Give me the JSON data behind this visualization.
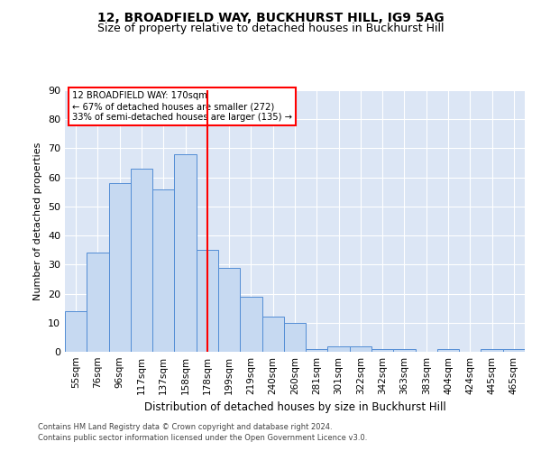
{
  "title": "12, BROADFIELD WAY, BUCKHURST HILL, IG9 5AG",
  "subtitle": "Size of property relative to detached houses in Buckhurst Hill",
  "xlabel": "Distribution of detached houses by size in Buckhurst Hill",
  "ylabel": "Number of detached properties",
  "footnote1": "Contains HM Land Registry data © Crown copyright and database right 2024.",
  "footnote2": "Contains public sector information licensed under the Open Government Licence v3.0.",
  "categories": [
    "55sqm",
    "76sqm",
    "96sqm",
    "117sqm",
    "137sqm",
    "158sqm",
    "178sqm",
    "199sqm",
    "219sqm",
    "240sqm",
    "260sqm",
    "281sqm",
    "301sqm",
    "322sqm",
    "342sqm",
    "363sqm",
    "383sqm",
    "404sqm",
    "424sqm",
    "445sqm",
    "465sqm"
  ],
  "values": [
    14,
    34,
    58,
    63,
    56,
    68,
    35,
    29,
    19,
    12,
    10,
    1,
    2,
    2,
    1,
    1,
    0,
    1,
    0,
    1,
    1
  ],
  "bar_color": "#c6d9f1",
  "bar_edge_color": "#538dd5",
  "vline_x": 6,
  "vline_color": "red",
  "annotation_line1": "12 BROADFIELD WAY: 170sqm",
  "annotation_line2": "← 67% of detached houses are smaller (272)",
  "annotation_line3": "33% of semi-detached houses are larger (135) →",
  "annotation_box_edge": "red",
  "ylim": [
    0,
    90
  ],
  "yticks": [
    0,
    10,
    20,
    30,
    40,
    50,
    60,
    70,
    80,
    90
  ],
  "background_color": "#ffffff",
  "plot_bg_color": "#dce6f5",
  "grid_color": "#ffffff",
  "title_fontsize": 10,
  "subtitle_fontsize": 9,
  "ylabel_fontsize": 8,
  "xlabel_fontsize": 8.5,
  "tick_fontsize": 7.5,
  "footnote_fontsize": 6
}
